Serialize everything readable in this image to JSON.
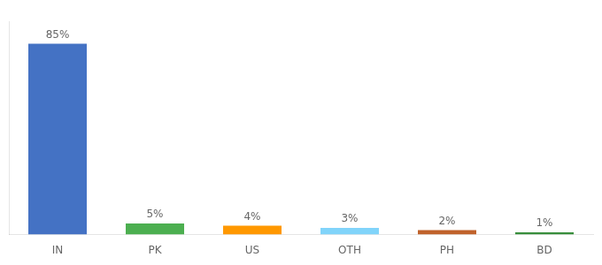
{
  "chart_data": {
    "type": "bar",
    "categories": [
      "IN",
      "PK",
      "US",
      "OTH",
      "PH",
      "BD"
    ],
    "values": [
      85,
      5,
      4,
      3,
      2,
      1
    ],
    "value_labels": [
      "85%",
      "5%",
      "4%",
      "3%",
      "2%",
      "1%"
    ],
    "colors": [
      "#4472c4",
      "#4caf50",
      "#ff9800",
      "#81d4fa",
      "#c0622b",
      "#388e3c"
    ],
    "ylim": [
      0,
      95
    ],
    "data_labels": true,
    "tick_labels": "x",
    "grid": false
  }
}
